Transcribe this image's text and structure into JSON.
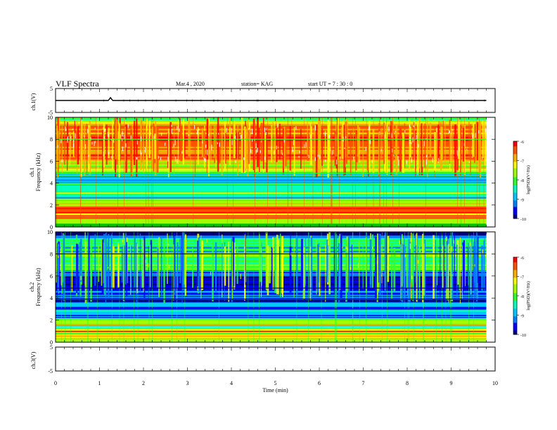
{
  "header": {
    "title": "VLF Spectra",
    "date": "Mar.4 , 2020",
    "station": "station= KAG",
    "start": "start  UT =   7 : 30 : 0"
  },
  "colors": {
    "palette": [
      "#00007f",
      "#0000ff",
      "#0080ff",
      "#00c8ff",
      "#00ffc0",
      "#30ff30",
      "#a0ff00",
      "#ffff00",
      "#ffb000",
      "#ff5000",
      "#ff0000",
      "#ffffff"
    ]
  },
  "chart_data": [
    {
      "type": "line",
      "panel": "ch1-voltage",
      "ylabel": "ch.1(V)",
      "ylim": [
        -5,
        5
      ],
      "yticks": [
        "5",
        "-5"
      ],
      "xlim": [
        0,
        10
      ],
      "series": [
        {
          "values": [
            [
              0,
              0
            ],
            [
              1.2,
              0
            ],
            [
              1.25,
              1.2
            ],
            [
              1.3,
              0
            ],
            [
              9.8,
              0
            ]
          ]
        }
      ]
    },
    {
      "type": "heatmap",
      "panel": "ch1-spectrogram",
      "ylabel": "ch.1\nFrequency  (kHz)",
      "ylim": [
        0,
        10
      ],
      "yticks": [
        "0",
        "2",
        "4",
        "6",
        "8",
        "10"
      ],
      "xlim": [
        0,
        10
      ],
      "data_extent_min": 9.8,
      "colorbar": {
        "label": "log(PSD)(V²/Hz)",
        "range": [
          -10,
          -6
        ],
        "ticks": [
          "-6",
          "-7",
          "-8",
          "-9",
          "-10"
        ]
      },
      "bands": [
        {
          "f": [
            0,
            0.3
          ],
          "level": -8.5
        },
        {
          "f": [
            0.3,
            1.0
          ],
          "level": -7.4
        },
        {
          "f": [
            1.0,
            2.0
          ],
          "level": -6.5
        },
        {
          "f": [
            2.0,
            2.7
          ],
          "level": -7.6
        },
        {
          "f": [
            2.7,
            3.8
          ],
          "level": -8.3
        },
        {
          "f": [
            3.8,
            5.0
          ],
          "level": -9.0
        },
        {
          "f": [
            5.0,
            6.0
          ],
          "level": -7.9
        },
        {
          "f": [
            6.0,
            9.5
          ],
          "level": -6.5
        },
        {
          "f": [
            9.5,
            10.0
          ],
          "level": -7.8
        }
      ]
    },
    {
      "type": "heatmap",
      "panel": "ch2-spectrogram",
      "ylabel": "ch.2\nFrequency  (kHz)",
      "ylim": [
        0,
        10
      ],
      "yticks": [
        "0",
        "2",
        "4",
        "6",
        "8",
        "10"
      ],
      "xlim": [
        0,
        10
      ],
      "data_extent_min": 9.8,
      "colorbar": {
        "label": "log(PSD)(V²/Hz)",
        "range": [
          -10,
          -6
        ],
        "ticks": [
          "-6",
          "-7",
          "-8",
          "-9",
          "-10"
        ]
      },
      "bands": [
        {
          "f": [
            0,
            0.4
          ],
          "level": -7.8
        },
        {
          "f": [
            0.4,
            1.2
          ],
          "level": -7.2
        },
        {
          "f": [
            1.2,
            2.2
          ],
          "level": -7.6
        },
        {
          "f": [
            2.2,
            3.5
          ],
          "level": -8.8
        },
        {
          "f": [
            3.5,
            4.6
          ],
          "level": -9.4
        },
        {
          "f": [
            4.6,
            6.5
          ],
          "level": -9.6
        },
        {
          "f": [
            6.5,
            9.5
          ],
          "level": -8.2
        },
        {
          "f": [
            9.5,
            10.0
          ],
          "level": -9.8
        }
      ]
    },
    {
      "type": "line",
      "panel": "ch3-voltage",
      "ylabel": "ch.3(V)",
      "ylim": [
        -5,
        5
      ],
      "yticks": [
        "5",
        "-5"
      ],
      "xlim": [
        0,
        10
      ],
      "series": []
    }
  ],
  "xaxis": {
    "label": "Time  (min)",
    "ticks": [
      "0",
      "1",
      "2",
      "3",
      "4",
      "5",
      "6",
      "7",
      "8",
      "9",
      "10"
    ],
    "range": [
      0,
      10
    ]
  }
}
